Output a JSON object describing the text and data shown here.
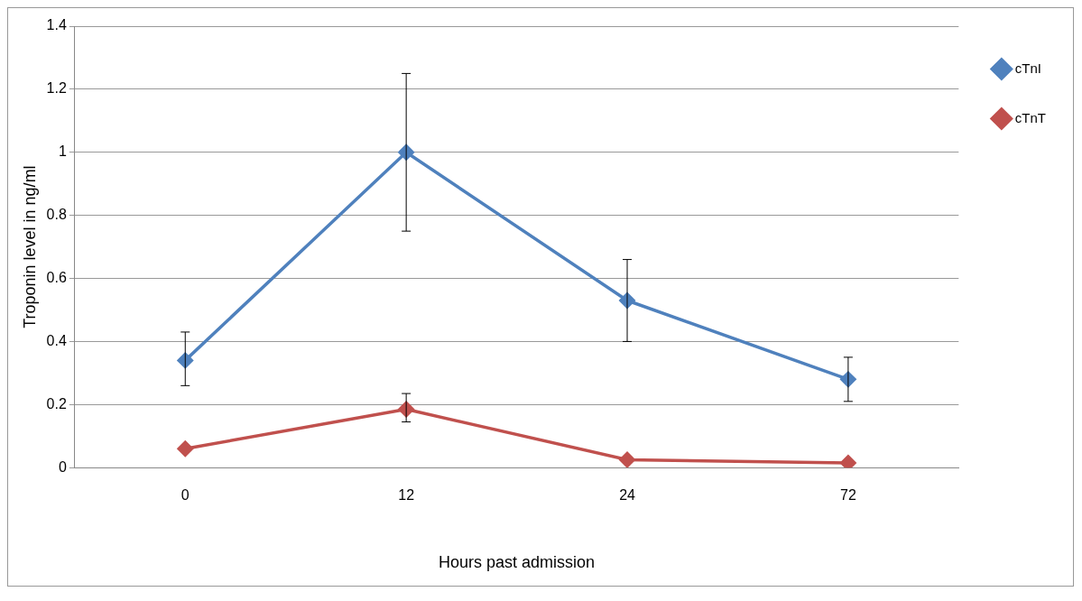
{
  "chart_data": {
    "type": "line",
    "xlabel": "Hours past admission",
    "ylabel": "Troponin level in ng/ml",
    "categories": [
      "0",
      "12",
      "24",
      "72"
    ],
    "series": [
      {
        "name": "cTnI",
        "color": "#4f81bd",
        "values": [
          0.34,
          1.0,
          0.53,
          0.28
        ],
        "errors": [
          [
            0.26,
            0.43
          ],
          [
            0.75,
            1.25
          ],
          [
            0.4,
            0.66
          ],
          [
            0.21,
            0.35
          ]
        ]
      },
      {
        "name": "cTnT",
        "color": "#c0504d",
        "values": [
          0.06,
          0.185,
          0.025,
          0.015
        ],
        "errors": [
          null,
          [
            0.145,
            0.235
          ],
          null,
          null
        ]
      }
    ],
    "ylim": [
      0,
      1.4
    ],
    "yticks": [
      0,
      0.2,
      0.4,
      0.6,
      0.8,
      1,
      1.2,
      1.4
    ],
    "grid": "y",
    "legend": "top right",
    "marker": "diamond",
    "line_style": "solid"
  }
}
